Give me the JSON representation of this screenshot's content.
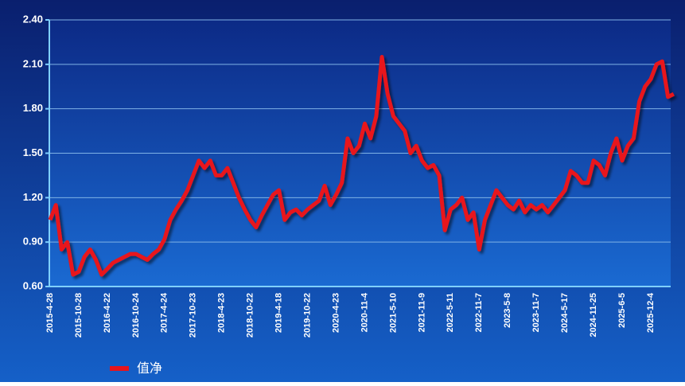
{
  "chart_data": {
    "type": "line",
    "categories": [
      "2015-4-28",
      null,
      null,
      null,
      null,
      "2015-10-28",
      null,
      null,
      null,
      null,
      "2016-4-22",
      null,
      null,
      null,
      null,
      "2016-10-24",
      null,
      null,
      null,
      null,
      "2017-4-24",
      null,
      null,
      null,
      null,
      "2017-10-23",
      null,
      null,
      null,
      null,
      "2018-4-23",
      null,
      null,
      null,
      null,
      "2018-10-22",
      null,
      null,
      null,
      null,
      "2019-4-18",
      null,
      null,
      null,
      null,
      "2019-10-22",
      null,
      null,
      null,
      null,
      "2020-4-23",
      null,
      null,
      null,
      null,
      "2020-11-4",
      null,
      null,
      null,
      null,
      "2021-5-10",
      null,
      null,
      null,
      null,
      "2021-11-9",
      null,
      null,
      null,
      null,
      "2022-5-11",
      null,
      null,
      null,
      null,
      "2022-11-7",
      null,
      null,
      null,
      null,
      "2023-5-8",
      null,
      null,
      null,
      null,
      "2023-11-7",
      null,
      null,
      null,
      null,
      "2024-5-17",
      null,
      null,
      null,
      null,
      "2024-11-25",
      null,
      null,
      null,
      null,
      "2025-6-5",
      null,
      null,
      null,
      null,
      "2025-12-4",
      null,
      null,
      null,
      null
    ],
    "series": [
      {
        "name": "值净",
        "color": "#e8141c",
        "values": [
          1.05,
          1.15,
          0.85,
          0.9,
          0.68,
          0.7,
          0.8,
          0.85,
          0.78,
          0.68,
          0.72,
          0.76,
          0.78,
          0.8,
          0.82,
          0.82,
          0.8,
          0.78,
          0.82,
          0.85,
          0.92,
          1.05,
          1.12,
          1.18,
          1.25,
          1.35,
          1.45,
          1.4,
          1.45,
          1.35,
          1.35,
          1.4,
          1.3,
          1.2,
          1.12,
          1.05,
          1.0,
          1.08,
          1.15,
          1.22,
          1.25,
          1.05,
          1.1,
          1.12,
          1.08,
          1.12,
          1.15,
          1.18,
          1.28,
          1.15,
          1.22,
          1.3,
          1.6,
          1.5,
          1.55,
          1.7,
          1.6,
          1.75,
          2.15,
          1.9,
          1.75,
          1.7,
          1.65,
          1.5,
          1.55,
          1.45,
          1.4,
          1.42,
          1.35,
          0.98,
          1.12,
          1.15,
          1.2,
          1.05,
          1.1,
          0.85,
          1.05,
          1.15,
          1.25,
          1.2,
          1.15,
          1.12,
          1.18,
          1.1,
          1.15,
          1.12,
          1.15,
          1.1,
          1.15,
          1.2,
          1.25,
          1.38,
          1.35,
          1.3,
          1.3,
          1.45,
          1.42,
          1.35,
          1.5,
          1.6,
          1.45,
          1.55,
          1.6,
          1.85,
          1.95,
          2.0,
          2.1,
          2.12,
          1.88,
          1.9
        ]
      }
    ],
    "ylim": [
      0.6,
      2.4
    ],
    "yticks": [
      {
        "value": 0.6,
        "label": "0.60"
      },
      {
        "value": 0.9,
        "label": "0.90"
      },
      {
        "value": 1.2,
        "label": "1.20"
      },
      {
        "value": 1.5,
        "label": "1.50"
      },
      {
        "value": 1.8,
        "label": "1.80"
      },
      {
        "value": 2.1,
        "label": "2.10"
      },
      {
        "value": 2.4,
        "label": "2.40"
      }
    ],
    "grid": true
  }
}
